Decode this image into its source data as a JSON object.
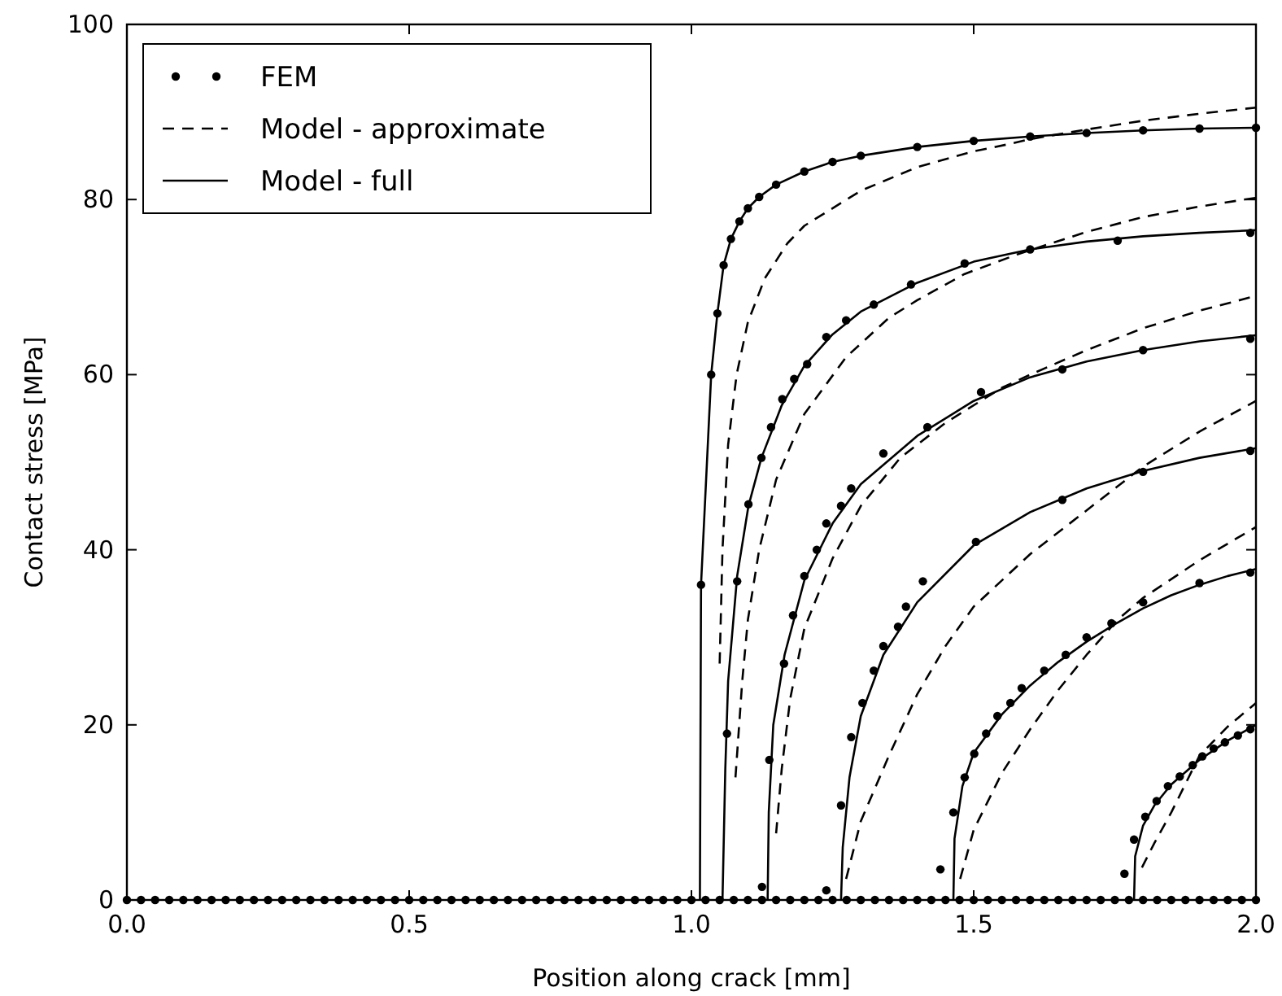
{
  "chart_data": {
    "type": "line",
    "xlabel": "Position along crack [mm]",
    "ylabel": "Contact stress [MPa]",
    "xlim": [
      0,
      2
    ],
    "ylim": [
      0,
      100
    ],
    "xticks": [
      {
        "value": 0,
        "label": "0.0"
      },
      {
        "value": 0.5,
        "label": "0.5"
      },
      {
        "value": 1,
        "label": "1.0"
      },
      {
        "value": 1.5,
        "label": "1.5"
      },
      {
        "value": 2,
        "label": "2.0"
      }
    ],
    "yticks": [
      0,
      20,
      40,
      60,
      80,
      100
    ],
    "legend": "top left",
    "grid": false,
    "series": [
      {
        "name": "FEM",
        "type": "scatter",
        "marker": "circle",
        "color": "#000000",
        "x": [
          0,
          0.025,
          0.05,
          0.075,
          0.1,
          0.125,
          0.15,
          0.175,
          0.2,
          0.225,
          0.25,
          0.275,
          0.3,
          0.325,
          0.35,
          0.375,
          0.4,
          0.425,
          0.45,
          0.475,
          0.5,
          0.525,
          0.55,
          0.575,
          0.6,
          0.625,
          0.65,
          0.675,
          0.7,
          0.725,
          0.75,
          0.775,
          0.8,
          0.825,
          0.85,
          0.875,
          0.9,
          0.925,
          0.95,
          0.975,
          1.0,
          1.025,
          1.05,
          1.075,
          1.1,
          1.125,
          1.15,
          1.175,
          1.2,
          1.225,
          1.25,
          1.275,
          1.3,
          1.325,
          1.35,
          1.375,
          1.4,
          1.425,
          1.45,
          1.475,
          1.5,
          1.525,
          1.55,
          1.575,
          1.6,
          1.625,
          1.65,
          1.675,
          1.7,
          1.725,
          1.75,
          1.775,
          1.8,
          1.825,
          1.85,
          1.875,
          1.9,
          1.925,
          1.95,
          1.975,
          2.0,
          1.017,
          1.035,
          1.046,
          1.057,
          1.07,
          1.085,
          1.1,
          1.12,
          1.15,
          1.2,
          1.25,
          1.3,
          1.4,
          1.5,
          1.6,
          1.7,
          1.8,
          1.9,
          2.0,
          1.063,
          1.081,
          1.101,
          1.124,
          1.141,
          1.161,
          1.182,
          1.205,
          1.239,
          1.274,
          1.323,
          1.389,
          1.484,
          1.6,
          1.755,
          1.99,
          1.125,
          1.138,
          1.164,
          1.18,
          1.2,
          1.222,
          1.239,
          1.265,
          1.283,
          1.34,
          1.418,
          1.513,
          1.657,
          1.8,
          1.99,
          1.239,
          1.265,
          1.283,
          1.303,
          1.323,
          1.34,
          1.366,
          1.38,
          1.41,
          1.504,
          1.657,
          1.8,
          1.99,
          1.441,
          1.464,
          1.484,
          1.501,
          1.522,
          1.542,
          1.565,
          1.585,
          1.625,
          1.663,
          1.7,
          1.744,
          1.8,
          1.9,
          1.99,
          1.767,
          1.784,
          1.804,
          1.824,
          1.844,
          1.865,
          1.888,
          1.905,
          1.925,
          1.945,
          1.968,
          1.99
        ],
        "values": [
          0,
          0,
          0,
          0,
          0,
          0,
          0,
          0,
          0,
          0,
          0,
          0,
          0,
          0,
          0,
          0,
          0,
          0,
          0,
          0,
          0,
          0,
          0,
          0,
          0,
          0,
          0,
          0,
          0,
          0,
          0,
          0,
          0,
          0,
          0,
          0,
          0,
          0,
          0,
          0,
          0,
          0,
          0,
          0,
          0,
          0,
          0,
          0,
          0,
          0,
          0,
          0,
          0,
          0,
          0,
          0,
          0,
          0,
          0,
          0,
          0,
          0,
          0,
          0,
          0,
          0,
          0,
          0,
          0,
          0,
          0,
          0,
          0,
          0,
          0,
          0,
          0,
          0,
          0,
          0,
          0,
          36,
          60,
          67,
          72.5,
          75.5,
          77.5,
          79,
          80.3,
          81.7,
          83.2,
          84.3,
          85,
          86,
          86.7,
          87.2,
          87.6,
          87.9,
          88.1,
          88.2,
          19,
          36.4,
          45.2,
          50.5,
          54,
          57.2,
          59.5,
          61.2,
          64.3,
          66.2,
          68,
          70.3,
          72.7,
          74.3,
          75.3,
          76.2,
          1.5,
          16,
          27,
          32.5,
          37,
          40,
          43,
          45,
          47,
          51,
          54,
          58,
          60.6,
          62.8,
          64.1,
          1.1,
          10.8,
          18.6,
          22.5,
          26.2,
          29,
          31.2,
          33.5,
          36.4,
          40.9,
          45.7,
          48.9,
          51.3,
          3.5,
          10,
          14,
          16.7,
          19,
          21,
          22.5,
          24.2,
          26.2,
          28,
          30,
          31.6,
          34,
          36.2,
          37.4,
          3,
          6.9,
          9.5,
          11.3,
          13,
          14.1,
          15.4,
          16.4,
          17.3,
          18,
          18.8,
          19.5
        ]
      },
      {
        "name": "Model - approximate",
        "line_style": "dashed",
        "color": "#000000",
        "x": [
          1.05,
          1.055,
          1.065,
          1.08,
          1.1,
          1.13,
          1.17,
          1.2,
          1.3,
          1.4,
          1.5,
          1.56,
          1.6,
          1.7,
          1.8,
          1.9,
          2.0
        ],
        "values": [
          27,
          40,
          52,
          60,
          66,
          71,
          75,
          77,
          81,
          83.7,
          85.5,
          86.3,
          86.9,
          88,
          89,
          89.8,
          90.5
        ]
      },
      {
        "line_style": "dashed",
        "color": "#000000",
        "x": [
          1.078,
          1.09,
          1.1,
          1.12,
          1.15,
          1.2,
          1.274,
          1.35,
          1.4,
          1.484,
          1.58,
          1.7,
          1.8,
          1.9,
          2.0
        ],
        "values": [
          14,
          25,
          32,
          40,
          48,
          55.5,
          62,
          66.5,
          68.5,
          71.5,
          73.8,
          76.3,
          78,
          79.2,
          80.2
        ]
      },
      {
        "line_style": "dashed",
        "color": "#000000",
        "x": [
          1.15,
          1.16,
          1.175,
          1.2,
          1.25,
          1.3,
          1.37,
          1.45,
          1.55,
          1.6,
          1.7,
          1.8,
          1.9,
          2.0
        ],
        "values": [
          7.6,
          15,
          23,
          31,
          39,
          45,
          50.5,
          54.5,
          58.5,
          60,
          62.8,
          65.3,
          67.3,
          69
        ]
      },
      {
        "line_style": "dashed",
        "color": "#000000",
        "x": [
          1.274,
          1.3,
          1.35,
          1.4,
          1.45,
          1.5,
          1.6,
          1.7,
          1.74,
          1.8,
          1.9,
          2.0
        ],
        "values": [
          2.4,
          9,
          16.5,
          23.5,
          29,
          33.5,
          39.5,
          44.5,
          46.5,
          49.5,
          53.5,
          57
        ]
      },
      {
        "line_style": "dashed",
        "color": "#000000",
        "x": [
          1.476,
          1.5,
          1.55,
          1.6,
          1.65,
          1.7,
          1.755,
          1.8,
          1.9,
          2.0
        ],
        "values": [
          2.4,
          8,
          14.5,
          19.5,
          24,
          28,
          32,
          34.5,
          38.8,
          42.6
        ]
      },
      {
        "line_style": "dashed",
        "color": "#000000",
        "x": [
          1.798,
          1.82,
          1.85,
          1.9,
          1.95,
          2.0
        ],
        "values": [
          3.7,
          6.5,
          10,
          16.5,
          19.8,
          22.5
        ]
      },
      {
        "name": "Model - full",
        "line_style": "solid",
        "color": "#000000",
        "x": [
          1.015,
          1.017,
          1.035,
          1.046,
          1.057,
          1.07,
          1.085,
          1.1,
          1.12,
          1.15,
          1.2,
          1.25,
          1.3,
          1.4,
          1.5,
          1.6,
          1.7,
          1.8,
          1.9,
          2.0
        ],
        "values": [
          0,
          36,
          60,
          67,
          72.5,
          75.5,
          77.5,
          79,
          80.3,
          81.7,
          83.2,
          84.3,
          85,
          86,
          86.7,
          87.2,
          87.6,
          87.9,
          88.1,
          88.2
        ]
      },
      {
        "line_style": "solid",
        "color": "#000000",
        "x": [
          1.055,
          1.06,
          1.065,
          1.081,
          1.101,
          1.124,
          1.16,
          1.2,
          1.25,
          1.3,
          1.4,
          1.5,
          1.6,
          1.7,
          1.8,
          1.9,
          2.0
        ],
        "values": [
          0,
          15,
          25,
          37,
          45,
          50.5,
          56.5,
          61,
          64.6,
          67.2,
          70.5,
          72.9,
          74.3,
          75.2,
          75.8,
          76.2,
          76.5
        ]
      },
      {
        "line_style": "solid",
        "color": "#000000",
        "x": [
          1.135,
          1.137,
          1.145,
          1.165,
          1.2,
          1.25,
          1.3,
          1.4,
          1.5,
          1.6,
          1.7,
          1.8,
          1.9,
          2.0
        ],
        "values": [
          0,
          10,
          20,
          28,
          36.5,
          43,
          47.5,
          53,
          57,
          59.7,
          61.5,
          62.8,
          63.8,
          64.5
        ]
      },
      {
        "line_style": "solid",
        "color": "#000000",
        "x": [
          1.265,
          1.268,
          1.28,
          1.3,
          1.34,
          1.4,
          1.5,
          1.6,
          1.7,
          1.8,
          1.9,
          2.0
        ],
        "values": [
          0,
          6,
          14,
          21,
          28,
          34,
          40.5,
          44.3,
          47,
          49,
          50.5,
          51.6
        ]
      },
      {
        "line_style": "solid",
        "color": "#000000",
        "x": [
          1.464,
          1.466,
          1.48,
          1.5,
          1.55,
          1.6,
          1.65,
          1.7,
          1.75,
          1.8,
          1.85,
          1.9,
          1.95,
          2.0
        ],
        "values": [
          0,
          7,
          13,
          16.8,
          21.2,
          24.5,
          27.2,
          29.5,
          31.5,
          33.3,
          34.8,
          36,
          37,
          37.8
        ]
      },
      {
        "line_style": "solid",
        "color": "#000000",
        "x": [
          1.784,
          1.786,
          1.8,
          1.82,
          1.85,
          1.9,
          1.95,
          2.0
        ],
        "values": [
          0,
          5,
          8.5,
          10.8,
          13.2,
          16,
          18.2,
          20
        ]
      }
    ]
  }
}
